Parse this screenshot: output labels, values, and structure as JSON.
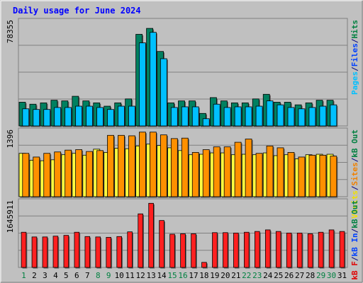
{
  "chart_data": [
    {
      "type": "bar",
      "title": "Daily usage for June 2024",
      "panel": "top",
      "ymax_label": "78355",
      "ylim": [
        0,
        78355
      ],
      "categories": [
        "1",
        "2",
        "3",
        "4",
        "5",
        "6",
        "7",
        "8",
        "9",
        "10",
        "11",
        "12",
        "13",
        "14",
        "15",
        "16",
        "17",
        "18",
        "19",
        "20",
        "21",
        "22",
        "23",
        "24",
        "25",
        "26",
        "27",
        "28",
        "29",
        "30",
        "31"
      ],
      "legend": [
        {
          "text": "Pages",
          "color": "#00c0ff"
        },
        {
          "text": "/",
          "color": "#000080"
        },
        {
          "text": "Files",
          "color": "#0040ff"
        },
        {
          "text": "/",
          "color": "#000080"
        },
        {
          "text": "Hits",
          "color": "#008040"
        }
      ],
      "series": [
        {
          "name": "Hits",
          "color": "#008060",
          "values": [
            18000,
            16500,
            17500,
            19500,
            19000,
            22500,
            19000,
            17500,
            15000,
            17500,
            20500,
            69500,
            74000,
            56500,
            17500,
            19000,
            19000,
            9500,
            21500,
            19000,
            17500,
            17500,
            20500,
            24000,
            18000,
            18000,
            16000,
            17500,
            19500,
            19500,
            0
          ]
        },
        {
          "name": "Files",
          "color": "#0040ff",
          "values": [
            0,
            0,
            0,
            0,
            0,
            0,
            0,
            0,
            0,
            0,
            0,
            0,
            0,
            0,
            0,
            0,
            0,
            0,
            0,
            0,
            0,
            0,
            0,
            0,
            0,
            0,
            0,
            0,
            0,
            0,
            0
          ]
        },
        {
          "name": "Pages",
          "color": "#00c0ff",
          "values": [
            13000,
            12500,
            12500,
            14000,
            14000,
            15000,
            15000,
            14000,
            12500,
            15000,
            15000,
            63000,
            71000,
            51000,
            14000,
            14500,
            14500,
            5500,
            16500,
            14000,
            14500,
            14500,
            15000,
            19000,
            16000,
            14000,
            13000,
            14000,
            15000,
            16000,
            0
          ]
        }
      ]
    },
    {
      "type": "bar",
      "panel": "middle",
      "ymax_label": "1396",
      "ylim": [
        0,
        1396
      ],
      "categories": [
        "1",
        "2",
        "3",
        "4",
        "5",
        "6",
        "7",
        "8",
        "9",
        "10",
        "11",
        "12",
        "13",
        "14",
        "15",
        "16",
        "17",
        "18",
        "19",
        "20",
        "21",
        "22",
        "23",
        "24",
        "25",
        "26",
        "27",
        "28",
        "29",
        "30",
        "31"
      ],
      "legend": [
        {
          "text": "Visits",
          "color": "#f0e000"
        },
        {
          "text": "/",
          "color": "#000080"
        },
        {
          "text": "Sites",
          "color": "#f08000"
        },
        {
          "text": "/",
          "color": "#000080"
        },
        {
          "text": "kB Out",
          "color": "#008040"
        }
      ],
      "series": [
        {
          "name": "Visits",
          "color": "#ffff40",
          "values": [
            940,
            790,
            780,
            800,
            910,
            940,
            900,
            1030,
            960,
            1050,
            1040,
            1100,
            1140,
            1110,
            1060,
            1000,
            910,
            920,
            950,
            950,
            910,
            920,
            910,
            950,
            890,
            910,
            820,
            910,
            920,
            920,
            0
          ]
        },
        {
          "name": "Sites",
          "color": "#ff9000",
          "values": [
            940,
            860,
            940,
            970,
            1010,
            1020,
            980,
            1000,
            1330,
            1330,
            1320,
            1400,
            1400,
            1340,
            1260,
            1270,
            960,
            1020,
            1080,
            1080,
            1180,
            1250,
            940,
            1100,
            1060,
            960,
            860,
            900,
            900,
            880,
            0
          ]
        }
      ]
    },
    {
      "type": "bar",
      "panel": "bottom",
      "ymax_label": "1645911",
      "ylim": [
        0,
        1645911
      ],
      "categories": [
        "1",
        "2",
        "3",
        "4",
        "5",
        "6",
        "7",
        "8",
        "9",
        "10",
        "11",
        "12",
        "13",
        "14",
        "15",
        "16",
        "17",
        "18",
        "19",
        "20",
        "21",
        "22",
        "23",
        "24",
        "25",
        "26",
        "27",
        "28",
        "29",
        "30",
        "31"
      ],
      "legend": [
        {
          "text": "kB F",
          "color": "#e00000"
        },
        {
          "text": "/",
          "color": "#000080"
        },
        {
          "text": "kB In",
          "color": "#0040ff"
        },
        {
          "text": "/",
          "color": "#000080"
        },
        {
          "text": "kB Out",
          "color": "#008040"
        }
      ],
      "series": [
        {
          "name": "kB F",
          "color": "#ff2020",
          "values": [
            900000,
            780000,
            780000,
            800000,
            820000,
            900000,
            790000,
            780000,
            770000,
            790000,
            910000,
            1370000,
            1640000,
            1200000,
            850000,
            860000,
            860000,
            130000,
            890000,
            890000,
            880000,
            900000,
            920000,
            960000,
            920000,
            880000,
            880000,
            860000,
            900000,
            960000,
            920000
          ]
        }
      ],
      "x_label_colors": [
        "#008040",
        "#000000",
        "#000000",
        "#000000",
        "#000000",
        "#000000",
        "#000000",
        "#008040",
        "#008040",
        "#000000",
        "#000000",
        "#000000",
        "#000000",
        "#000000",
        "#008040",
        "#008040",
        "#000000",
        "#000000",
        "#000000",
        "#000000",
        "#000000",
        "#008040",
        "#008040",
        "#000000",
        "#000000",
        "#000000",
        "#000000",
        "#000000",
        "#008040",
        "#008040",
        "#000000"
      ]
    }
  ],
  "colors": {
    "background": "#c0c0c0",
    "plot_background": "#c0c0c0",
    "grid": "#808080",
    "title": "#0000ff",
    "axis_label": "#000000"
  }
}
